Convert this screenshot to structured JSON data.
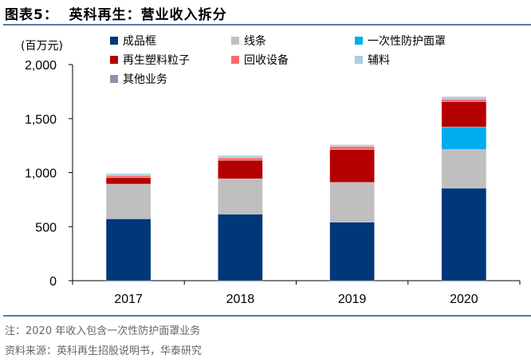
{
  "header": {
    "title": "图表5：  英科再生：营业收入拆分"
  },
  "footer": {
    "note": "注：2020 年收入包含一次性防护面罩业务",
    "source": "资料来源：英科再生招股说明书，华泰研究"
  },
  "chart_data": {
    "type": "bar",
    "stacked": true,
    "title": "",
    "ylabel": "(百万元)",
    "ylim": [
      0,
      2000
    ],
    "yticks": [
      "0",
      "500",
      "1,000",
      "1,500",
      "2,000"
    ],
    "ytick_values": [
      0,
      500,
      1000,
      1500,
      2000
    ],
    "categories": [
      "2017",
      "2018",
      "2019",
      "2020"
    ],
    "legend_position": "top",
    "grid": false,
    "series": [
      {
        "name": "成品框",
        "color": "#003778",
        "values": [
          573,
          616,
          542,
          856
        ]
      },
      {
        "name": "线条",
        "color": "#bfbfbf",
        "values": [
          321,
          327,
          368,
          358
        ]
      },
      {
        "name": "一次性防护面罩",
        "color": "#00adef",
        "values": [
          0,
          0,
          0,
          209
        ]
      },
      {
        "name": "再生塑料粒子",
        "color": "#b40000",
        "values": [
          59,
          171,
          304,
          235
        ]
      },
      {
        "name": "回收设备",
        "color": "#ff6b6b",
        "values": [
          20,
          23,
          28,
          23
        ]
      },
      {
        "name": "辅料",
        "color": "#a9cfe0",
        "values": [
          16,
          20,
          15,
          21
        ]
      },
      {
        "name": "其他业务",
        "color": "#8a93a8",
        "values": [
          3,
          3,
          3,
          3
        ]
      }
    ]
  }
}
